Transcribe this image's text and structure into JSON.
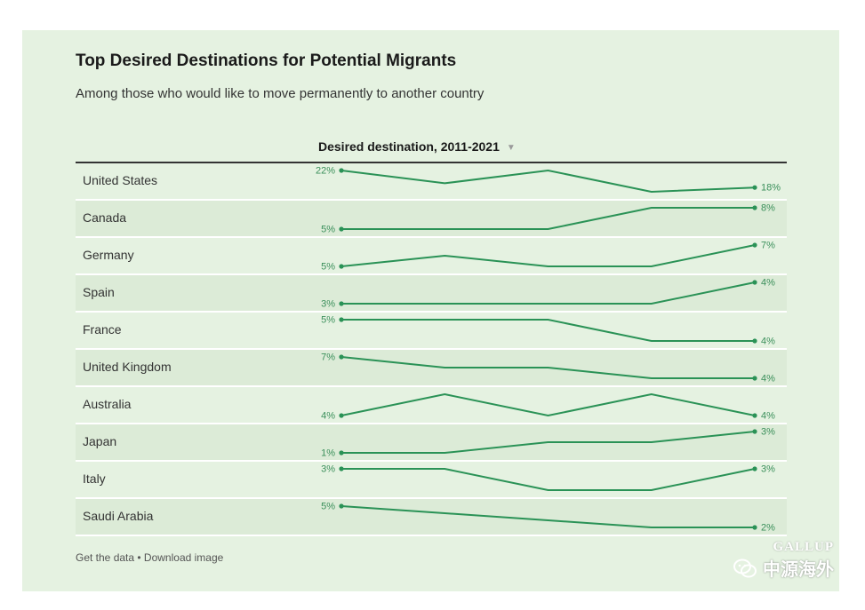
{
  "header": {
    "title": "Top Desired Destinations for Potential Migrants",
    "subtitle": "Among those who would like to move permanently to another country",
    "column_header": "Desired destination, 2011-2021"
  },
  "footer": {
    "get_data": "Get the data",
    "separator": " • ",
    "download": "Download image"
  },
  "watermark": {
    "brand": "GALLUP",
    "channel": "中源海外"
  },
  "colors": {
    "line": "#2a9256",
    "label": "#3a8f5a",
    "background": "#e5f2e1",
    "row_alt": "#dcebd7"
  },
  "chart_data": {
    "type": "line",
    "title": "Top Desired Destinations for Potential Migrants",
    "subtitle": "Among those who would like to move permanently to another country",
    "column_header": "Desired destination, 2011-2021",
    "unit": "%",
    "points_per_series": 5,
    "series": [
      {
        "name": "United States",
        "values": [
          22,
          19,
          22,
          17,
          18
        ],
        "first_label": "22%",
        "last_label": "18%"
      },
      {
        "name": "Canada",
        "values": [
          5,
          5,
          5,
          8,
          8
        ],
        "first_label": "5%",
        "last_label": "8%"
      },
      {
        "name": "Germany",
        "values": [
          5,
          6,
          5,
          5,
          7
        ],
        "first_label": "5%",
        "last_label": "7%"
      },
      {
        "name": "Spain",
        "values": [
          3,
          3,
          3,
          3,
          4
        ],
        "first_label": "3%",
        "last_label": "4%"
      },
      {
        "name": "France",
        "values": [
          5,
          5,
          5,
          4,
          4
        ],
        "first_label": "5%",
        "last_label": "4%"
      },
      {
        "name": "United Kingdom",
        "values": [
          7,
          5.5,
          5.5,
          4,
          4
        ],
        "first_label": "7%",
        "last_label": "4%"
      },
      {
        "name": "Australia",
        "values": [
          4,
          5,
          4,
          5,
          4
        ],
        "first_label": "4%",
        "last_label": "4%"
      },
      {
        "name": "Japan",
        "values": [
          1,
          1,
          2,
          2,
          3
        ],
        "first_label": "1%",
        "last_label": "3%"
      },
      {
        "name": "Italy",
        "values": [
          3,
          3,
          2,
          2,
          3
        ],
        "first_label": "3%",
        "last_label": "3%"
      },
      {
        "name": "Saudi Arabia",
        "values": [
          5,
          4,
          3,
          2,
          2
        ],
        "first_label": "5%",
        "last_label": "2%"
      }
    ],
    "grid": false,
    "legend": "none"
  }
}
